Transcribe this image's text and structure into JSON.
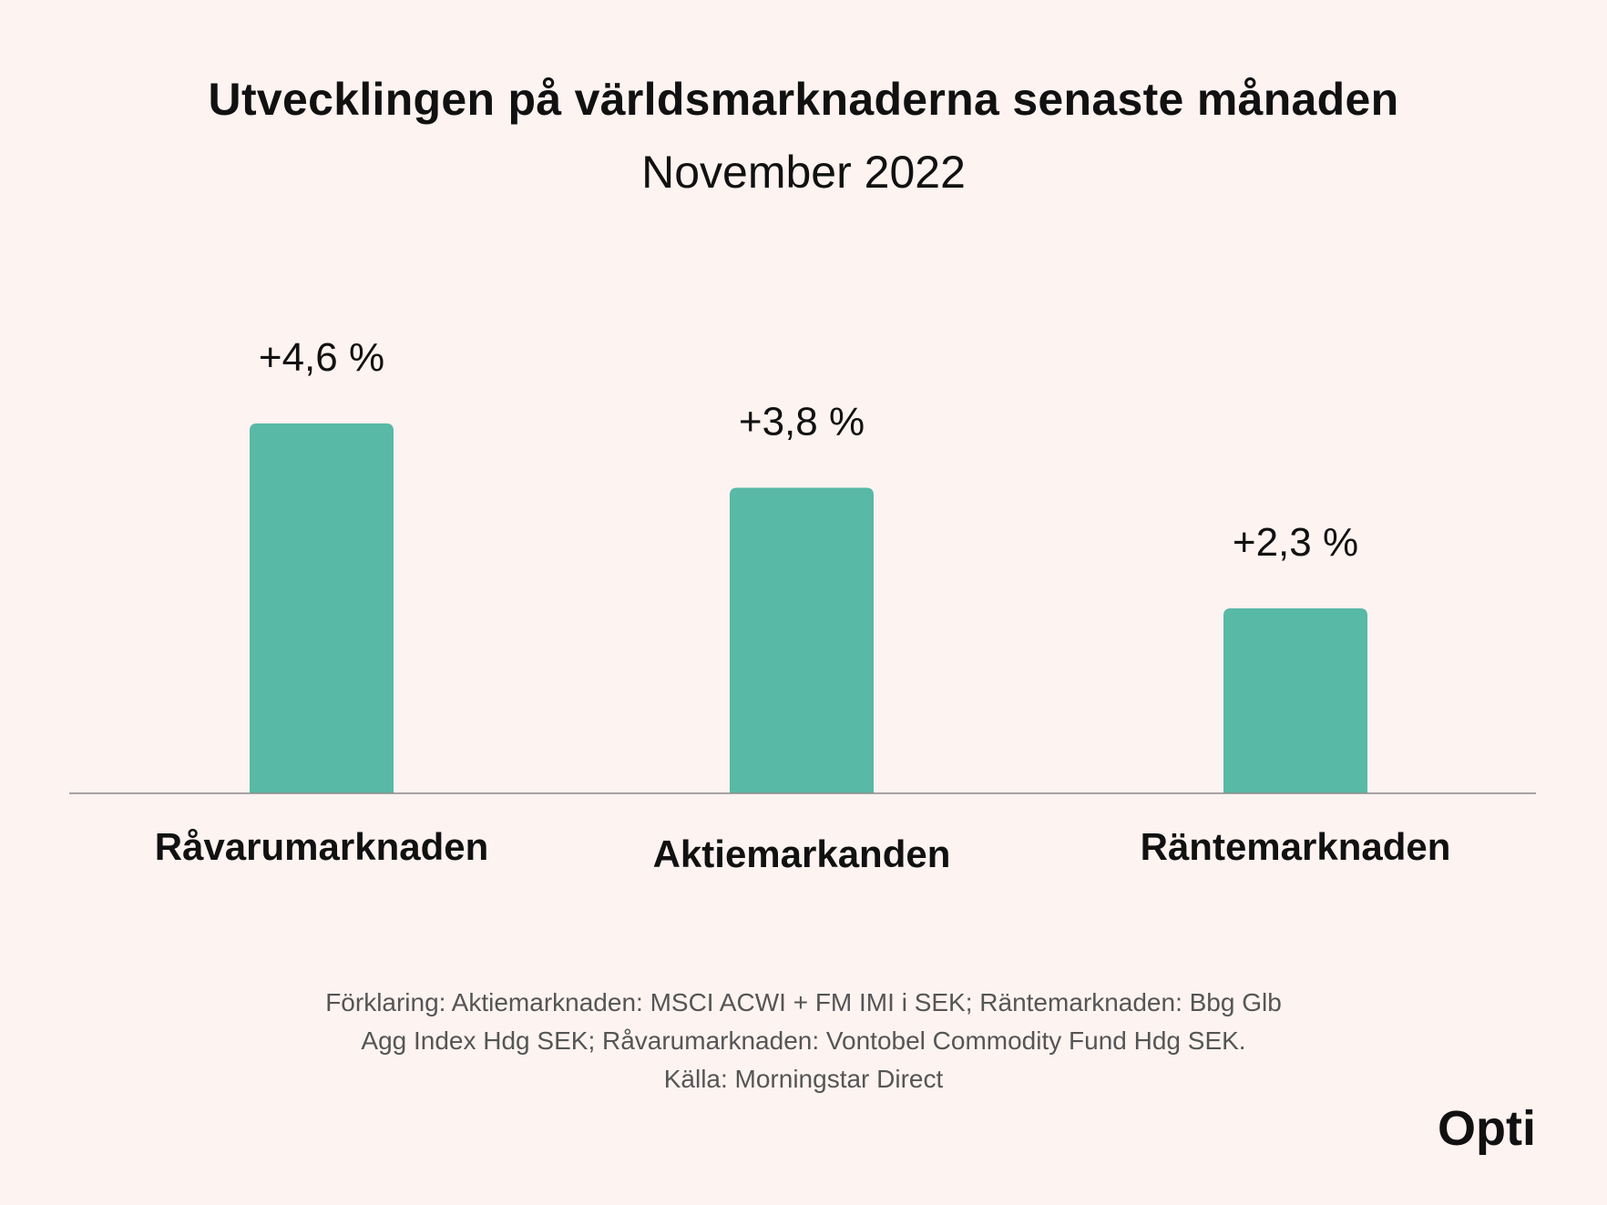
{
  "title": "Utvecklingen på världsmarknaderna senaste månaden",
  "subtitle": "November 2022",
  "chart_data": {
    "type": "bar",
    "categories": [
      "Råvarumarknaden",
      "Aktiemarkanden",
      "Räntemarknaden"
    ],
    "values": [
      4.6,
      3.8,
      2.3
    ],
    "data_labels": [
      "+4,6 %",
      "+3,8 %",
      "+2,3 %"
    ],
    "title": "Utvecklingen på världsmarknaderna senaste månaden",
    "subtitle": "November 2022",
    "xlabel": "",
    "ylabel": "",
    "ylim": [
      0,
      5
    ],
    "grid": false,
    "legend": "none",
    "bar_color": "#58b9a6"
  },
  "footnote": {
    "line1": "Förklaring: Aktiemarknaden: MSCI ACWI + FM IMI i SEK; Räntemarknaden: Bbg Glb",
    "line2": "Agg Index Hdg SEK; Råvarumarknaden: Vontobel Commodity Fund Hdg SEK.",
    "line3": "Källa: Morningstar Direct"
  },
  "logo": {
    "text": "Opti"
  },
  "colors": {
    "background": "#fdf3f1",
    "bar": "#58b9a6",
    "axis": "#8a8a8a",
    "text": "#111111"
  }
}
